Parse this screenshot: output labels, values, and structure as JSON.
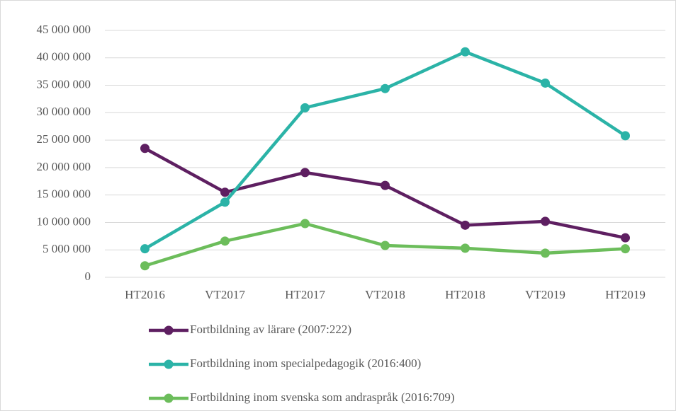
{
  "chart_data": {
    "type": "line",
    "categories": [
      "HT2016",
      "VT2017",
      "HT2017",
      "VT2018",
      "HT2018",
      "VT2019",
      "HT2019"
    ],
    "series": [
      {
        "name": "Fortbildning av lärare (2007:222)",
        "color": "#5e1f61",
        "values": [
          23500000,
          15500000,
          19100000,
          16750000,
          9500000,
          10200000,
          7200000
        ]
      },
      {
        "name": "Fortbildning inom specialpedagogik (2016:400)",
        "color": "#2bb3a7",
        "values": [
          5200000,
          13700000,
          30900000,
          34400000,
          41100000,
          35400000,
          25800000
        ]
      },
      {
        "name": "Fortbildning inom svenska som andraspråk (2016:709)",
        "color": "#6cbd5b",
        "values": [
          2100000,
          6600000,
          9800000,
          5800000,
          5300000,
          4400000,
          5200000
        ]
      }
    ],
    "ylim": [
      0,
      45000000
    ],
    "yticks": [
      0,
      {
        "value": 5000000,
        "label": "5 000 000"
      },
      {
        "value": 10000000,
        "label": "10 000 000"
      },
      {
        "value": 15000000,
        "label": "15 000 000"
      },
      {
        "value": 20000000,
        "label": "20 000 000"
      },
      {
        "value": 25000000,
        "label": "25 000 000"
      },
      {
        "value": 30000000,
        "label": "30 000 000"
      },
      {
        "value": 35000000,
        "label": "35 000 000"
      },
      {
        "value": 40000000,
        "label": "40 000 000"
      },
      {
        "value": 45000000,
        "label": "45 000 000"
      }
    ],
    "grid": true,
    "legend": "bottom"
  }
}
